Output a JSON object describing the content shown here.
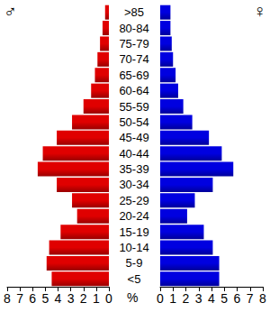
{
  "chart_data": {
    "type": "bar",
    "orientation": "horizontal",
    "categories": [
      "<5",
      "5-9",
      "10-14",
      "15-19",
      "20-24",
      "25-29",
      "30-34",
      "35-39",
      "40-44",
      "45-49",
      "50-54",
      "55-59",
      "60-64",
      "65-69",
      "70-74",
      "75-79",
      "80-84",
      ">85"
    ],
    "series": [
      {
        "name": "♂",
        "color": "#e00000",
        "values": [
          4.5,
          4.9,
          4.7,
          3.8,
          2.5,
          2.9,
          4.1,
          5.6,
          5.2,
          4.1,
          2.9,
          2.0,
          1.4,
          1.1,
          0.9,
          0.7,
          0.5,
          0.3
        ]
      },
      {
        "name": "♀",
        "color": "#0000e0",
        "values": [
          4.6,
          4.6,
          4.1,
          3.4,
          2.1,
          2.7,
          4.1,
          5.7,
          4.8,
          3.8,
          2.5,
          1.8,
          1.4,
          1.2,
          1.0,
          0.9,
          0.8,
          0.8
        ]
      }
    ],
    "xlabel": "%",
    "xlim": [
      0,
      8
    ],
    "xticks": [
      0,
      1,
      2,
      3,
      4,
      5,
      6,
      7,
      8
    ],
    "grid": false
  }
}
